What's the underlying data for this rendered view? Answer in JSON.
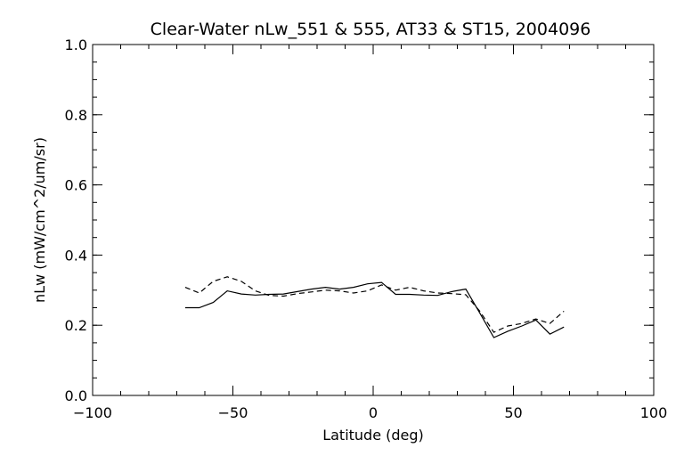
{
  "chart_data": {
    "type": "line",
    "title": "Clear-Water nLw_551 & 555, AT33 & ST15, 2004096",
    "xlabel": "Latitude (deg)",
    "ylabel": "nLw (mW/cm^2/um/sr)",
    "xlim": [
      -100,
      100
    ],
    "ylim": [
      0.0,
      1.0
    ],
    "x_ticks": [
      -100,
      -50,
      0,
      50,
      100
    ],
    "x_tick_labels": [
      "−100",
      "−50",
      "0",
      "50",
      "100"
    ],
    "y_ticks": [
      0.0,
      0.2,
      0.4,
      0.6,
      0.8,
      1.0
    ],
    "y_tick_labels": [
      "0.0",
      "0.2",
      "0.4",
      "0.6",
      "0.8",
      "1.0"
    ],
    "x_minor_step": 10,
    "y_minor_step": 0.05,
    "grid": false,
    "legend": "none",
    "series": [
      {
        "style": "solid",
        "color": "#000000",
        "x": [
          -67,
          -62,
          -57,
          -52,
          -47,
          -42,
          -37,
          -32,
          -27,
          -22,
          -17,
          -12,
          -7,
          -2,
          3,
          8,
          13,
          18,
          23,
          28,
          33,
          38,
          43,
          48,
          53,
          58,
          63,
          68
        ],
        "y": [
          0.25,
          0.25,
          0.265,
          0.298,
          0.289,
          0.286,
          0.288,
          0.289,
          0.296,
          0.303,
          0.308,
          0.303,
          0.308,
          0.318,
          0.322,
          0.288,
          0.288,
          0.286,
          0.285,
          0.296,
          0.303,
          0.235,
          0.165,
          0.183,
          0.198,
          0.215,
          0.175,
          0.195
        ]
      },
      {
        "style": "dashed",
        "color": "#000000",
        "x": [
          -67,
          -62,
          -57,
          -52,
          -47,
          -42,
          -37,
          -32,
          -27,
          -22,
          -17,
          -12,
          -7,
          -2,
          3,
          8,
          13,
          18,
          23,
          28,
          33,
          38,
          43,
          48,
          53,
          58,
          63,
          68
        ],
        "y": [
          0.308,
          0.292,
          0.325,
          0.338,
          0.325,
          0.298,
          0.285,
          0.283,
          0.29,
          0.295,
          0.3,
          0.298,
          0.292,
          0.298,
          0.315,
          0.3,
          0.308,
          0.298,
          0.292,
          0.29,
          0.287,
          0.24,
          0.18,
          0.198,
          0.205,
          0.218,
          0.205,
          0.24
        ]
      }
    ]
  }
}
